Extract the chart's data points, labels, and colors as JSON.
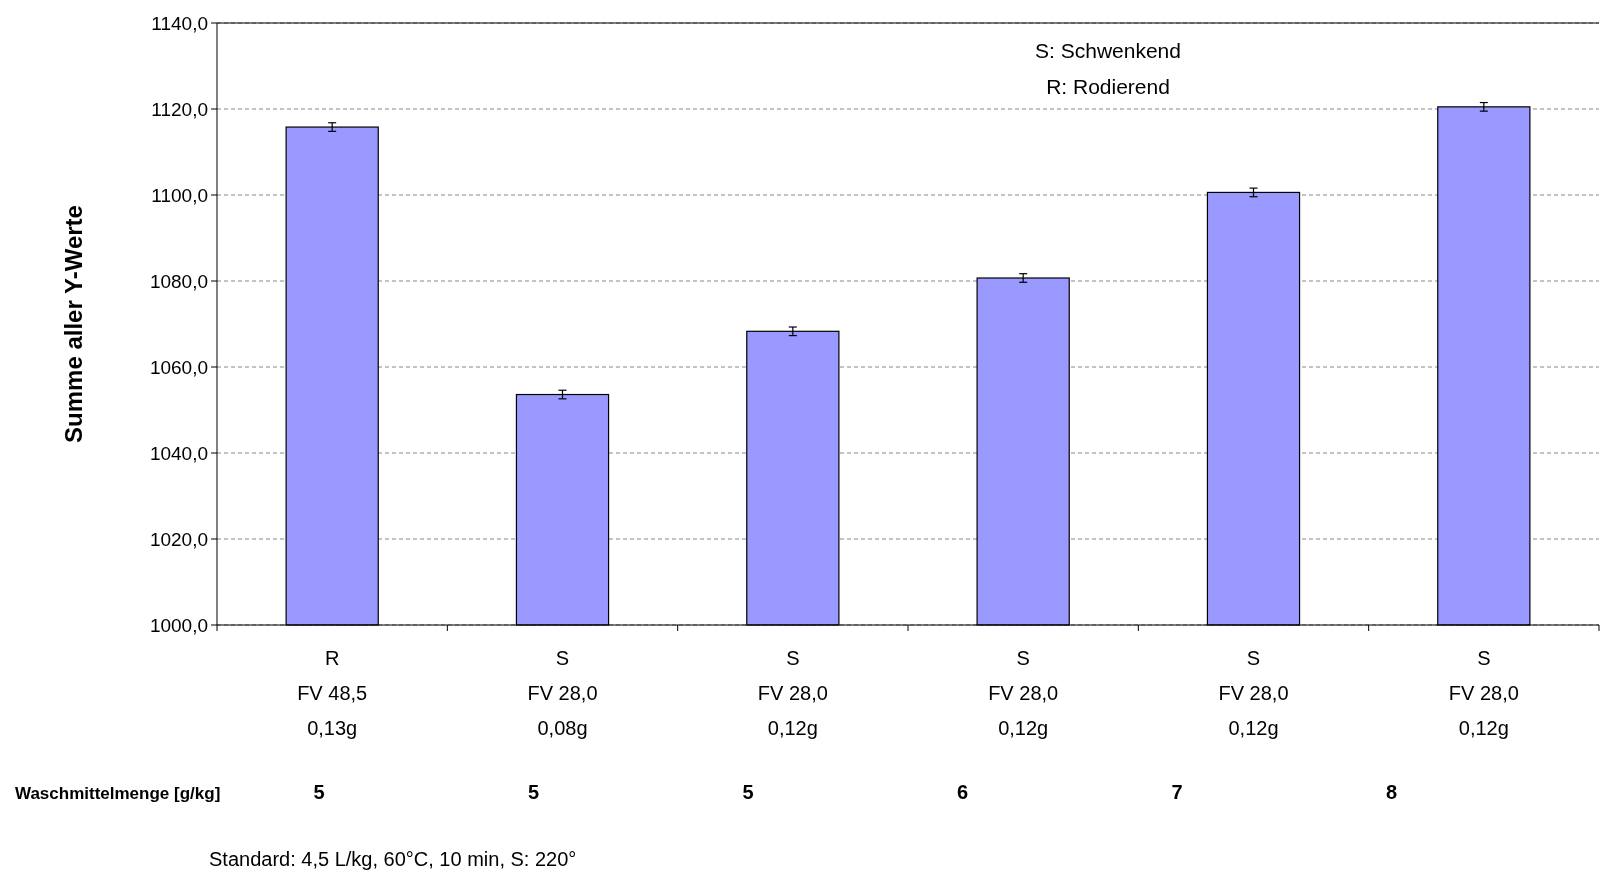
{
  "chart_data": {
    "type": "bar",
    "ylabel": "Summe aller Y-Werte",
    "categories": [
      "R\nFV 48,5\n0,13g",
      "S\nFV 28,0\n0,08g",
      "S\nFV 28,0\n0,12g",
      "S\nFV 28,0\n0,12g",
      "S\nFV 28,0\n0,12g",
      "S\nFV 28,0\n0,12g"
    ],
    "values": [
      1115.8,
      1053.6,
      1068.3,
      1080.7,
      1100.6,
      1120.5
    ],
    "errors": [
      1,
      1,
      1,
      1,
      1,
      1
    ],
    "color": "#9999ff",
    "ylim": [
      1000,
      1140
    ],
    "yticks": [
      {
        "value": 1000,
        "label": "1000,0"
      },
      {
        "value": 1020,
        "label": "1020,0"
      },
      {
        "value": 1040,
        "label": "1040,0"
      },
      {
        "value": 1060,
        "label": "1060,0"
      },
      {
        "value": 1080,
        "label": "1080,0"
      },
      {
        "value": 1100,
        "label": "1100,0"
      },
      {
        "value": 1120,
        "label": "1120,0"
      },
      {
        "value": 1140,
        "label": "1140,0"
      }
    ],
    "grid": "y",
    "annotations": [
      "S: Schwenkend",
      "R: Rodierend",
      "Waschmittelmenge [g/kg]",
      "5",
      "5",
      "5",
      "6",
      "7",
      "8",
      "Standard: 4,5 L/kg,  60°C, 10 min, S: 220°"
    ]
  }
}
